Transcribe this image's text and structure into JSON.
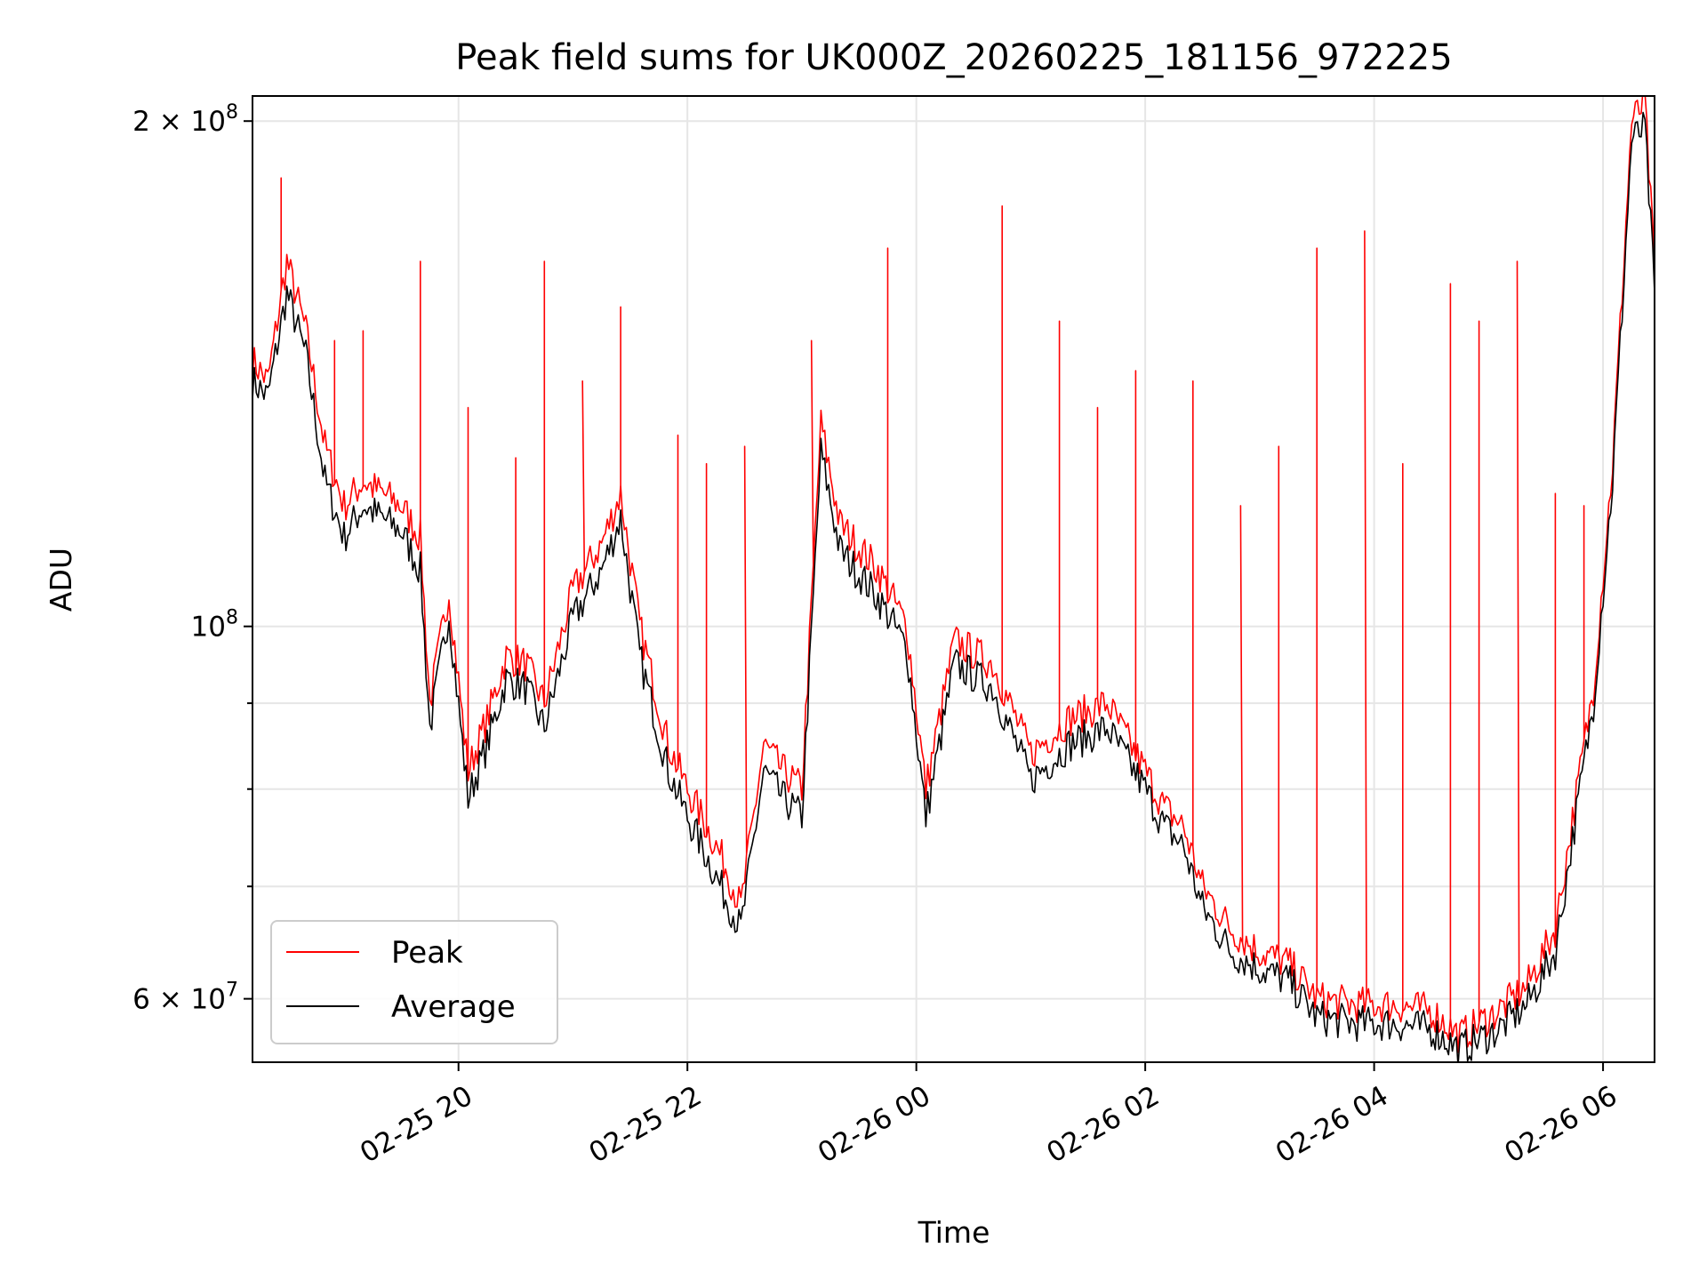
{
  "chart_data": {
    "type": "line",
    "title": "Peak field sums for UK000Z_20260225_181156_972225",
    "xlabel": "Time",
    "ylabel": "ADU",
    "yscale": "log",
    "xlim": [
      "2026-02-25T18:12",
      "2026-02-26T06:27"
    ],
    "ylim": [
      55000000,
      207000000
    ],
    "grid": true,
    "legend_position": "lower-left",
    "x_ticks": [
      {
        "t": "2026-02-25T20:00",
        "label": "02-25 20"
      },
      {
        "t": "2026-02-25T22:00",
        "label": "02-25 22"
      },
      {
        "t": "2026-02-26T00:00",
        "label": "02-26 00"
      },
      {
        "t": "2026-02-26T02:00",
        "label": "02-26 02"
      },
      {
        "t": "2026-02-26T04:00",
        "label": "02-26 04"
      },
      {
        "t": "2026-02-26T06:00",
        "label": "02-26 06"
      }
    ],
    "y_major_ticks": [
      {
        "v": 60000000,
        "label_base": "6 × 10",
        "label_exp": "7"
      },
      {
        "v": 100000000,
        "label_base": "10",
        "label_exp": "8"
      },
      {
        "v": 200000000,
        "label_base": "2 × 10",
        "label_exp": "8"
      }
    ],
    "y_minor_ticks": [
      70000000,
      80000000,
      90000000
    ],
    "series": [
      {
        "name": "Peak",
        "color": "#ff0000",
        "points": [
          [
            "2026-02-25T18:12",
            144000000
          ],
          [
            "2026-02-25T18:20",
            140000000
          ],
          [
            "2026-02-25T18:30",
            165000000
          ],
          [
            "2026-02-25T18:40",
            150000000
          ],
          [
            "2026-02-25T18:50",
            128000000
          ],
          [
            "2026-02-25T19:00",
            118000000
          ],
          [
            "2026-02-25T19:10",
            122000000
          ],
          [
            "2026-02-25T19:20",
            120000000
          ],
          [
            "2026-02-25T19:30",
            118000000
          ],
          [
            "2026-02-25T19:40",
            113000000
          ],
          [
            "2026-02-25T19:45",
            90000000
          ],
          [
            "2026-02-25T19:55",
            105000000
          ],
          [
            "2026-02-25T20:05",
            82000000
          ],
          [
            "2026-02-25T20:15",
            88000000
          ],
          [
            "2026-02-25T20:25",
            96000000
          ],
          [
            "2026-02-25T20:35",
            95000000
          ],
          [
            "2026-02-25T20:45",
            90000000
          ],
          [
            "2026-02-25T21:00",
            105000000
          ],
          [
            "2026-02-25T21:15",
            112000000
          ],
          [
            "2026-02-25T21:25",
            120000000
          ],
          [
            "2026-02-25T21:35",
            100000000
          ],
          [
            "2026-02-25T21:50",
            85000000
          ],
          [
            "2026-02-25T22:00",
            80000000
          ],
          [
            "2026-02-25T22:10",
            76000000
          ],
          [
            "2026-02-25T22:20",
            72000000
          ],
          [
            "2026-02-25T22:28",
            68000000
          ],
          [
            "2026-02-25T22:40",
            85000000
          ],
          [
            "2026-02-25T22:50",
            82000000
          ],
          [
            "2026-02-25T23:00",
            80000000
          ],
          [
            "2026-02-25T23:10",
            132000000
          ],
          [
            "2026-02-25T23:20",
            115000000
          ],
          [
            "2026-02-25T23:40",
            108000000
          ],
          [
            "2026-02-25T23:55",
            100000000
          ],
          [
            "2026-02-26T00:05",
            80000000
          ],
          [
            "2026-02-26T00:20",
            98000000
          ],
          [
            "2026-02-26T00:40",
            95000000
          ],
          [
            "2026-02-26T01:00",
            84000000
          ],
          [
            "2026-02-26T01:20",
            88000000
          ],
          [
            "2026-02-26T01:40",
            90000000
          ],
          [
            "2026-02-26T02:00",
            82000000
          ],
          [
            "2026-02-26T02:10",
            78000000
          ],
          [
            "2026-02-26T02:20",
            76000000
          ],
          [
            "2026-02-26T02:30",
            70000000
          ],
          [
            "2026-02-26T02:45",
            66000000
          ],
          [
            "2026-02-26T03:00",
            64000000
          ],
          [
            "2026-02-26T03:15",
            63000000
          ],
          [
            "2026-02-26T03:30",
            60000000
          ],
          [
            "2026-02-26T03:50",
            59500000
          ],
          [
            "2026-02-26T04:10",
            59500000
          ],
          [
            "2026-02-26T04:30",
            59000000
          ],
          [
            "2026-02-26T04:45",
            57000000
          ],
          [
            "2026-02-26T05:05",
            59000000
          ],
          [
            "2026-02-26T05:20",
            61000000
          ],
          [
            "2026-02-26T05:35",
            66000000
          ],
          [
            "2026-02-26T05:45",
            78000000
          ],
          [
            "2026-02-26T05:55",
            92000000
          ],
          [
            "2026-02-26T06:05",
            125000000
          ],
          [
            "2026-02-26T06:15",
            200000000
          ],
          [
            "2026-02-26T06:22",
            205000000
          ],
          [
            "2026-02-26T06:27",
            163000000
          ]
        ]
      },
      {
        "name": "Average",
        "color": "#000000",
        "points": [
          [
            "2026-02-25T18:12",
            140000000
          ],
          [
            "2026-02-25T18:20",
            137000000
          ],
          [
            "2026-02-25T18:30",
            158000000
          ],
          [
            "2026-02-25T18:40",
            145000000
          ],
          [
            "2026-02-25T18:50",
            122000000
          ],
          [
            "2026-02-25T19:00",
            113000000
          ],
          [
            "2026-02-25T19:10",
            118000000
          ],
          [
            "2026-02-25T19:20",
            116000000
          ],
          [
            "2026-02-25T19:30",
            114000000
          ],
          [
            "2026-02-25T19:40",
            108000000
          ],
          [
            "2026-02-25T19:45",
            87000000
          ],
          [
            "2026-02-25T19:55",
            102000000
          ],
          [
            "2026-02-25T20:05",
            79000000
          ],
          [
            "2026-02-25T20:15",
            85000000
          ],
          [
            "2026-02-25T20:25",
            93000000
          ],
          [
            "2026-02-25T20:35",
            92000000
          ],
          [
            "2026-02-25T20:45",
            87000000
          ],
          [
            "2026-02-25T21:00",
            101000000
          ],
          [
            "2026-02-25T21:15",
            108000000
          ],
          [
            "2026-02-25T21:25",
            116000000
          ],
          [
            "2026-02-25T21:35",
            96000000
          ],
          [
            "2026-02-25T21:50",
            82000000
          ],
          [
            "2026-02-25T22:00",
            77000000
          ],
          [
            "2026-02-25T22:10",
            73000000
          ],
          [
            "2026-02-25T22:20",
            69000000
          ],
          [
            "2026-02-25T22:28",
            66000000
          ],
          [
            "2026-02-25T22:40",
            82000000
          ],
          [
            "2026-02-25T22:50",
            79000000
          ],
          [
            "2026-02-25T23:00",
            77000000
          ],
          [
            "2026-02-25T23:10",
            127000000
          ],
          [
            "2026-02-25T23:20",
            111000000
          ],
          [
            "2026-02-25T23:40",
            104000000
          ],
          [
            "2026-02-25T23:55",
            97000000
          ],
          [
            "2026-02-26T00:05",
            77000000
          ],
          [
            "2026-02-26T00:20",
            95000000
          ],
          [
            "2026-02-26T00:40",
            92000000
          ],
          [
            "2026-02-26T01:00",
            81000000
          ],
          [
            "2026-02-26T01:20",
            85000000
          ],
          [
            "2026-02-26T01:40",
            87000000
          ],
          [
            "2026-02-26T02:00",
            80000000
          ],
          [
            "2026-02-26T02:10",
            76000000
          ],
          [
            "2026-02-26T02:20",
            74000000
          ],
          [
            "2026-02-26T02:30",
            68000000
          ],
          [
            "2026-02-26T02:45",
            64000000
          ],
          [
            "2026-02-26T03:00",
            62500000
          ],
          [
            "2026-02-26T03:15",
            61500000
          ],
          [
            "2026-02-26T03:30",
            58500000
          ],
          [
            "2026-02-26T03:50",
            58000000
          ],
          [
            "2026-02-26T04:10",
            58000000
          ],
          [
            "2026-02-26T04:30",
            57500000
          ],
          [
            "2026-02-26T04:45",
            56000000
          ],
          [
            "2026-02-26T05:05",
            57500000
          ],
          [
            "2026-02-26T05:20",
            59500000
          ],
          [
            "2026-02-26T05:35",
            64000000
          ],
          [
            "2026-02-26T05:45",
            76000000
          ],
          [
            "2026-02-26T05:55",
            90000000
          ],
          [
            "2026-02-26T06:05",
            122000000
          ],
          [
            "2026-02-26T06:15",
            195000000
          ],
          [
            "2026-02-26T06:22",
            198000000
          ],
          [
            "2026-02-26T06:27",
            158000000
          ]
        ]
      }
    ],
    "peak_spikes": [
      [
        "2026-02-25T18:27",
        185000000
      ],
      [
        "2026-02-25T18:55",
        148000000
      ],
      [
        "2026-02-25T19:10",
        150000000
      ],
      [
        "2026-02-25T19:40",
        165000000
      ],
      [
        "2026-02-25T20:05",
        135000000
      ],
      [
        "2026-02-25T20:30",
        126000000
      ],
      [
        "2026-02-25T20:45",
        165000000
      ],
      [
        "2026-02-25T21:05",
        140000000
      ],
      [
        "2026-02-25T21:25",
        155000000
      ],
      [
        "2026-02-25T21:55",
        130000000
      ],
      [
        "2026-02-25T22:10",
        125000000
      ],
      [
        "2026-02-25T22:30",
        128000000
      ],
      [
        "2026-02-25T23:05",
        148000000
      ],
      [
        "2026-02-25T23:45",
        168000000
      ],
      [
        "2026-02-26T00:45",
        178000000
      ],
      [
        "2026-02-26T01:15",
        152000000
      ],
      [
        "2026-02-26T01:35",
        135000000
      ],
      [
        "2026-02-26T01:55",
        142000000
      ],
      [
        "2026-02-26T02:25",
        140000000
      ],
      [
        "2026-02-26T02:50",
        118000000
      ],
      [
        "2026-02-26T03:10",
        128000000
      ],
      [
        "2026-02-26T03:30",
        168000000
      ],
      [
        "2026-02-26T03:55",
        172000000
      ],
      [
        "2026-02-26T04:15",
        125000000
      ],
      [
        "2026-02-26T04:40",
        160000000
      ],
      [
        "2026-02-26T04:55",
        152000000
      ],
      [
        "2026-02-26T05:15",
        165000000
      ],
      [
        "2026-02-26T05:35",
        120000000
      ],
      [
        "2026-02-26T05:50",
        118000000
      ]
    ]
  },
  "legend": {
    "items": [
      {
        "label": "Peak",
        "color": "#ff0000"
      },
      {
        "label": "Average",
        "color": "#000000"
      }
    ]
  }
}
